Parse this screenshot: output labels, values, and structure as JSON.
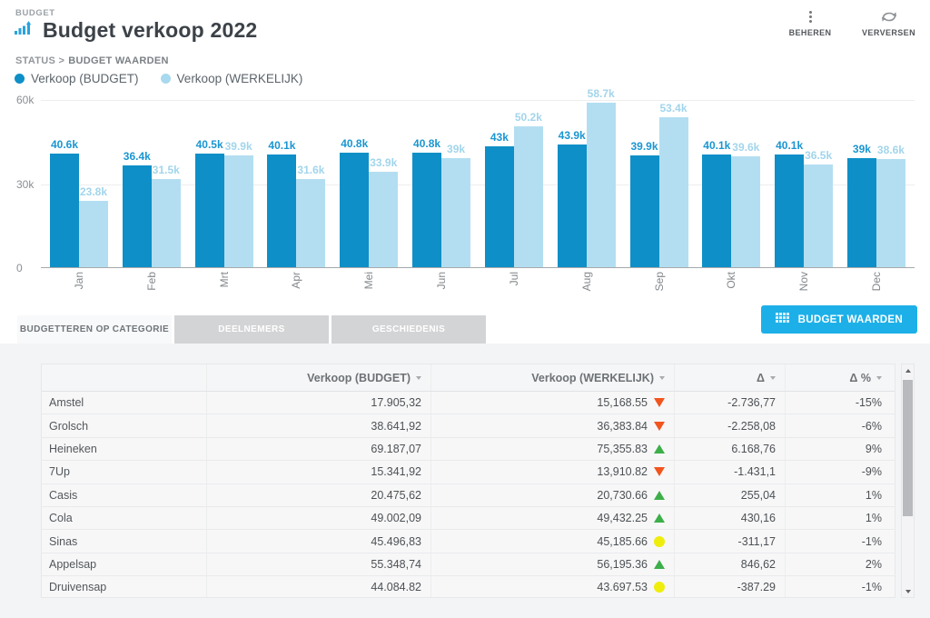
{
  "header": {
    "eyebrow": "BUDGET",
    "title": "Budget verkoop 2022",
    "breadcrumb": {
      "prefix": "STATUS >",
      "current": "BUDGET WAARDEN"
    },
    "actions": [
      {
        "label": "BEHEREN",
        "icon": "kebab-menu-icon"
      },
      {
        "label": "VERVERSEN",
        "icon": "refresh-icon"
      }
    ]
  },
  "legend": {
    "items": [
      {
        "label": "Verkoop (BUDGET)",
        "color": "#0f8fc7"
      },
      {
        "label": "Verkoop (WERKELIJK)",
        "color": "#a8d9ee"
      }
    ]
  },
  "chart_data": {
    "type": "bar",
    "categories": [
      "Jan",
      "Feb",
      "Mrt",
      "Apr",
      "Mei",
      "Jun",
      "Jul",
      "Aug",
      "Sep",
      "Okt",
      "Nov",
      "Dec"
    ],
    "series": [
      {
        "name": "Verkoop (BUDGET)",
        "color": "#0f8fc7",
        "values": [
          40600,
          36400,
          40500,
          40100,
          40800,
          40800,
          43000,
          43900,
          39900,
          40100,
          40100,
          39000
        ],
        "labels": [
          "40.6k",
          "36.4k",
          "40.5k",
          "40.1k",
          "40.8k",
          "40.8k",
          "43k",
          "43.9k",
          "39.9k",
          "40.1k",
          "40.1k",
          "39k"
        ]
      },
      {
        "name": "Verkoop (WERKELIJK)",
        "color": "#b3def1",
        "values": [
          23800,
          31500,
          39900,
          31600,
          33900,
          39000,
          50200,
          58700,
          53400,
          39600,
          36500,
          38600
        ],
        "labels": [
          "23.8k",
          "31.5k",
          "39.9k",
          "31.6k",
          "33.9k",
          "39k",
          "50.2k",
          "58.7k",
          "53.4k",
          "39.6k",
          "36.5k",
          "38.6k"
        ]
      }
    ],
    "ylim": [
      0,
      60000
    ],
    "yticks": [
      "60k",
      "30k",
      "0"
    ],
    "grid": true,
    "legend_position": "top-left"
  },
  "tabs": {
    "items": [
      {
        "label": "BUDGETTEREN OP CATEGORIE",
        "active": true
      },
      {
        "label": "DEELNEMERS",
        "active": false
      },
      {
        "label": "GESCHIEDENIS",
        "active": false
      }
    ]
  },
  "budget_button": {
    "label": "BUDGET WAARDEN",
    "icon": "grid-table-icon",
    "color": "#1db0e8"
  },
  "table": {
    "columns": [
      "",
      "Verkoop (BUDGET)",
      "Verkoop (WERKELIJK)",
      "Δ",
      "Δ %"
    ],
    "rows": [
      {
        "name": "Amstel",
        "budget": "17.905,32",
        "actual": "15,168.55",
        "indicator": "down",
        "delta": "-2.736,77",
        "delta_pct": "-15%"
      },
      {
        "name": "Grolsch",
        "budget": "38.641,92",
        "actual": "36,383.84",
        "indicator": "down",
        "delta": "-2.258,08",
        "delta_pct": "-6%"
      },
      {
        "name": "Heineken",
        "budget": "69.187,07",
        "actual": "75,355.83",
        "indicator": "up",
        "delta": "6.168,76",
        "delta_pct": "9%"
      },
      {
        "name": "7Up",
        "budget": "15.341,92",
        "actual": "13,910.82",
        "indicator": "down",
        "delta": "-1.431,1",
        "delta_pct": "-9%"
      },
      {
        "name": "Casis",
        "budget": "20.475,62",
        "actual": "20,730.66",
        "indicator": "up",
        "delta": "255,04",
        "delta_pct": "1%"
      },
      {
        "name": "Cola",
        "budget": "49.002,09",
        "actual": "49,432.25",
        "indicator": "up",
        "delta": "430,16",
        "delta_pct": "1%"
      },
      {
        "name": "Sinas",
        "budget": "45.496,83",
        "actual": "45,185.66",
        "indicator": "neutral",
        "delta": "-311,17",
        "delta_pct": "-1%"
      },
      {
        "name": "Appelsap",
        "budget": "55.348,74",
        "actual": "56,195.36",
        "indicator": "up",
        "delta": "846,62",
        "delta_pct": "2%"
      },
      {
        "name": "Druivensap",
        "budget": "44.084.82",
        "actual": "43.697.53",
        "indicator": "neutral",
        "delta": "-387.29",
        "delta_pct": "-1%"
      }
    ],
    "status_colors": {
      "up": "#3daf49",
      "down": "#f1551d",
      "neutral": "#efed0c"
    }
  }
}
